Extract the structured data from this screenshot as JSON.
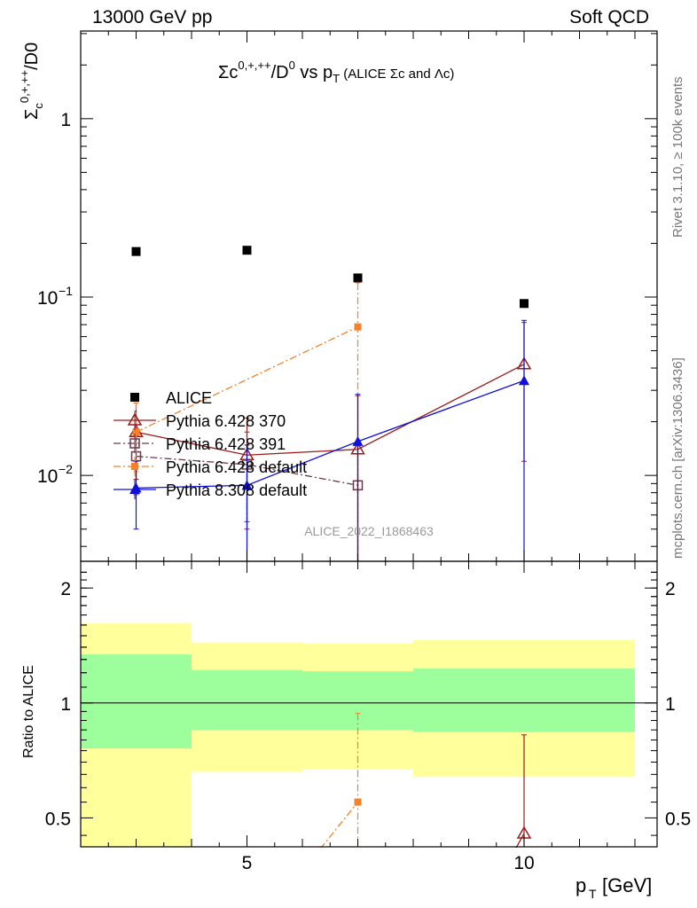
{
  "header": {
    "left": "13000 GeV pp",
    "right": "Soft QCD"
  },
  "side_labels": {
    "rivet": "Rivet 3.1.10, ≥ 100k events",
    "mcplots": "mcplots.cern.ch [arXiv:1306.3436]"
  },
  "colors": {
    "alice": "#000000",
    "pythia6_370": "#9b1b1b",
    "pythia6_391": "#6b3a4a",
    "pythia6_default": "#f7812a",
    "pythia8_default": "#1010d8",
    "band_inner": "#9cff9c",
    "band_outer": "#ffff9c"
  },
  "chart_data": [
    {
      "type": "scatter",
      "title": "Σc^{0,+,++}/D^0 vs p_T (ALICE Σc and Λc)",
      "ylabel": "Σc0,+,++/D0",
      "xlabel": "",
      "x_scale": "linear",
      "y_scale": "log",
      "xlim": [
        2,
        12.4
      ],
      "ylim": [
        0.0033,
        3.1
      ],
      "y_ticks": [
        "10^-2",
        "10^-1",
        "1"
      ],
      "grid": false,
      "legend_position": "lower-left",
      "watermark": "ALICE_2022_I1868463",
      "series": [
        {
          "name": "ALICE",
          "marker": "filled-square",
          "x": [
            3,
            5,
            7,
            10
          ],
          "y": [
            0.18,
            0.183,
            0.128,
            0.092
          ],
          "yerr_low": [
            0,
            0,
            0,
            0
          ],
          "yerr_high": [
            0,
            0,
            0,
            0
          ]
        },
        {
          "name": "Pythia 6.428 370",
          "marker": "open-triangle",
          "line": "solid",
          "x": [
            3,
            5,
            7,
            10
          ],
          "y": [
            0.0175,
            0.013,
            0.014,
            0.042
          ],
          "yerr_low": [
            0.008,
            0.008,
            0.0125,
            0.03
          ],
          "yerr_high": [
            0.008,
            0.008,
            0.014,
            0.03
          ]
        },
        {
          "name": "Pythia 6.428 391",
          "marker": "open-square",
          "line": "dash-dot",
          "x": [
            3,
            5,
            7
          ],
          "y": [
            0.0128,
            0.0115,
            0.0088
          ],
          "yerr_low": [
            0.005,
            0.006,
            0.0055
          ],
          "yerr_high": [
            0.005,
            0.006,
            0.006
          ]
        },
        {
          "name": "Pythia 6.428 default",
          "marker": "filled-square-small",
          "line": "dash-dot",
          "x": [
            3,
            7
          ],
          "y": [
            0.0175,
            0.068
          ],
          "yerr_low": [
            0.007,
            0.066
          ],
          "yerr_high": [
            0.008,
            0.052
          ]
        },
        {
          "name": "Pythia 8.308 default",
          "marker": "filled-triangle",
          "line": "solid",
          "x": [
            3,
            5,
            7,
            10
          ],
          "y": [
            0.0085,
            0.0088,
            0.0155,
            0.034
          ],
          "yerr_low": [
            0.0035,
            0.0085,
            0.0153,
            0.0338
          ],
          "yerr_high": [
            0.0035,
            0.006,
            0.013,
            0.04
          ]
        }
      ]
    },
    {
      "type": "line",
      "ylabel": "Ratio to ALICE",
      "xlabel": "p_T [GeV]",
      "x_scale": "linear",
      "y_scale": "log",
      "xlim": [
        2,
        12.4
      ],
      "ylim": [
        0.42,
        2.35
      ],
      "x_ticks": [
        "5",
        "10"
      ],
      "y_ticks": [
        "0.5",
        "1",
        "2"
      ],
      "bands": {
        "bins": [
          [
            2,
            4
          ],
          [
            4,
            6
          ],
          [
            6,
            8
          ],
          [
            8,
            12
          ]
        ],
        "inner_low": [
          0.76,
          0.85,
          0.85,
          0.84
        ],
        "inner_high": [
          1.34,
          1.22,
          1.21,
          1.23
        ],
        "outer_low": [
          0.4,
          0.66,
          0.67,
          0.64
        ],
        "outer_high": [
          1.62,
          1.44,
          1.43,
          1.46
        ]
      },
      "series": [
        {
          "name": "Pythia 6.428 default",
          "marker": "filled-square-small",
          "line": "dash-dot",
          "x": [
            5.2,
            7
          ],
          "y": [
            0.26,
            0.55
          ],
          "yerr_high": [
            0,
            0.39
          ],
          "yerr_low": [
            0,
            0.14
          ]
        },
        {
          "name": "Pythia 6.428 370",
          "marker": "open-triangle",
          "line": "solid",
          "x": [
            9.3,
            10
          ],
          "y": [
            0.3,
            0.455
          ],
          "yerr_high": [
            0,
            0.37
          ],
          "yerr_low": [
            0,
            0.1
          ]
        }
      ]
    }
  ]
}
